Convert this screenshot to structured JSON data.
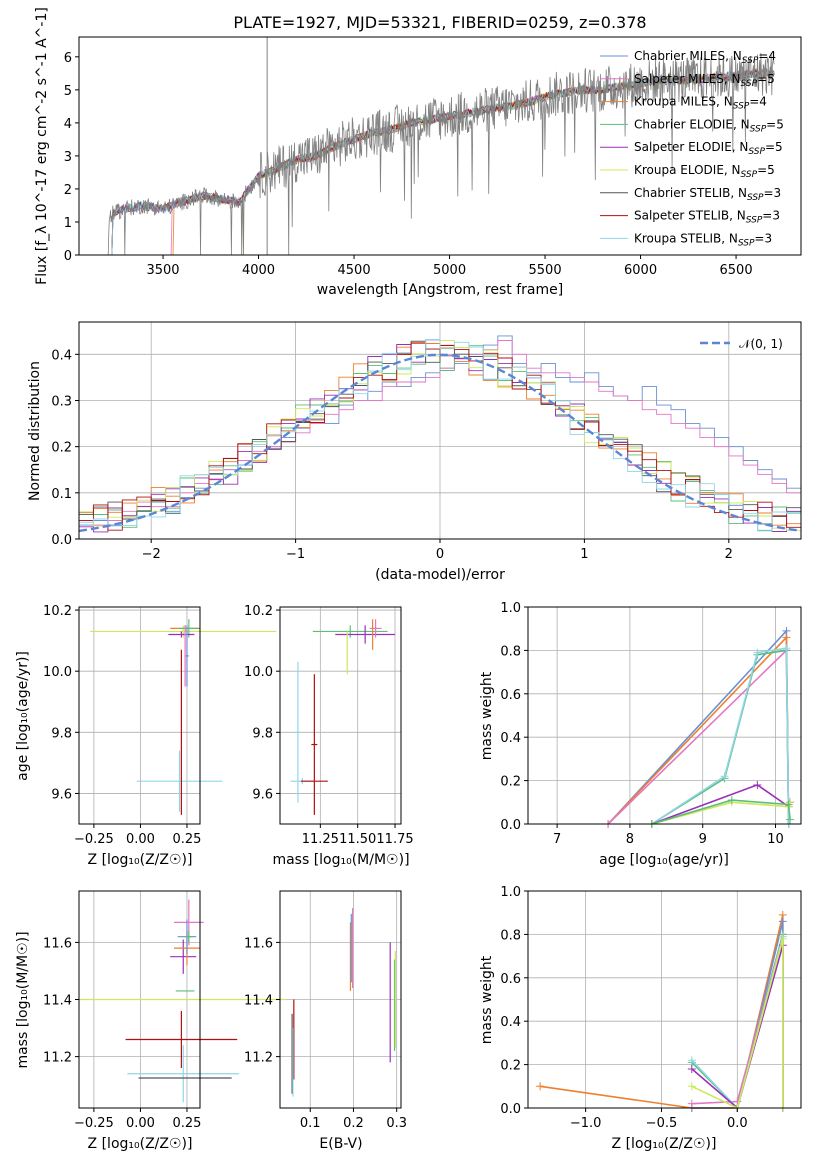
{
  "title": "PLATE=1927, MJD=53321, FIBERID=0259, z=0.378",
  "colors": {
    "chabrier_miles": "#6a8fd4",
    "salpeter_miles": "#e377c2",
    "kroupa_miles": "#ef7f2c",
    "chabrier_elodie": "#5bbf7a",
    "salpeter_elodie": "#9b30b8",
    "kroupa_elodie": "#cde85a",
    "chabrier_stelib": "#555555",
    "salpeter_stelib": "#b21010",
    "kroupa_stelib": "#8fd6e8",
    "normal": "#5b86d6"
  },
  "spectrum": {
    "xlabel": "wavelength [Angstrom, rest frame]",
    "ylabel": "Flux [f_λ 10^-17 erg cm^-2 s^-1 A^-1]",
    "xticks": [
      "3500",
      "4000",
      "4500",
      "5000",
      "5500",
      "6000",
      "6500"
    ],
    "yticks": [
      "0",
      "1",
      "2",
      "3",
      "4",
      "5",
      "6"
    ],
    "legend": [
      {
        "model": "Chabrier MILES",
        "n": "=4",
        "color": "#6a8fd4"
      },
      {
        "model": "Salpeter MILES",
        "n": "=5",
        "color": "#e377c2"
      },
      {
        "model": "Kroupa MILES",
        "n": "=4",
        "color": "#ef7f2c"
      },
      {
        "model": "Chabrier ELODIE",
        "n": "=5",
        "color": "#5bbf7a"
      },
      {
        "model": "Salpeter ELODIE",
        "n": "=5",
        "color": "#9b30b8"
      },
      {
        "model": "Kroupa ELODIE",
        "n": "=5",
        "color": "#cde85a"
      },
      {
        "model": "Chabrier STELIB",
        "n": "=3",
        "color": "#555555"
      },
      {
        "model": "Salpeter STELIB",
        "n": "=3",
        "color": "#b21010"
      },
      {
        "model": "Kroupa STELIB",
        "n": "=3",
        "color": "#8fd6e8"
      }
    ],
    "legend_n_label": "N",
    "legend_n_sub": "SSP"
  },
  "residuals": {
    "xlabel": "(data-model)/error",
    "ylabel": "Normed distribution",
    "legend": "𝒩(0, 1)",
    "xticks": [
      "−2",
      "−1",
      "0",
      "1",
      "2"
    ],
    "yticks": [
      "0.0",
      "0.1",
      "0.2",
      "0.3",
      "0.4"
    ]
  },
  "panels": {
    "age_z": {
      "xlabel": "Z [log₁₀(Z/Z☉)]",
      "ylabel": "age  [log₁₀(age/yr)]",
      "xticks": [
        "−0.25",
        "0.00",
        "0.25"
      ],
      "yticks": [
        "9.6",
        "9.8",
        "10.0",
        "10.2"
      ]
    },
    "age_mass": {
      "xlabel": "mass [log₁₀(M/M☉)]",
      "xticks": [
        "11.25",
        "11.50",
        "11.75"
      ],
      "yticks": [
        "9.6",
        "9.8",
        "10.0",
        "10.2"
      ]
    },
    "mw_age": {
      "xlabel": "age  [log₁₀(age/yr)]",
      "ylabel": "mass weight",
      "xticks": [
        "7",
        "8",
        "9",
        "10"
      ],
      "yticks": [
        "0.0",
        "0.2",
        "0.4",
        "0.6",
        "0.8",
        "1.0"
      ]
    },
    "mass_z": {
      "xlabel": "Z [log₁₀(Z/Z☉)]",
      "ylabel": "mass [log₁₀(M/M☉)]",
      "xticks": [
        "−0.25",
        "0.00",
        "0.25"
      ],
      "yticks": [
        "11.2",
        "11.4",
        "11.6"
      ]
    },
    "mass_ebv": {
      "xlabel": "E(B-V)",
      "xticks": [
        "0.1",
        "0.2",
        "0.3"
      ],
      "yticks": [
        "11.2",
        "11.4",
        "11.6"
      ]
    },
    "mw_z": {
      "xlabel": "Z [log₁₀(Z/Z☉)]",
      "ylabel": "mass weight",
      "xticks": [
        "−1.0",
        "−0.5",
        "0.0"
      ],
      "yticks": [
        "0.0",
        "0.2",
        "0.4",
        "0.6",
        "0.8",
        "1.0"
      ]
    }
  },
  "chart_data": [
    {
      "type": "line",
      "title": "PLATE=1927, MJD=53321, FIBERID=0259, z=0.378",
      "xlabel": "wavelength [Angstrom, rest frame]",
      "ylabel": "Flux [f_λ 10^-17 erg cm^-2 s^-1 A^-1]",
      "xlim": [
        3060,
        6840
      ],
      "ylim": [
        0,
        6.6
      ],
      "data_points": [
        [
          3210,
          0.0
        ],
        [
          3220,
          1.2
        ],
        [
          3300,
          1.4
        ],
        [
          3400,
          1.5
        ],
        [
          3500,
          1.4
        ],
        [
          3600,
          1.6
        ],
        [
          3700,
          1.8
        ],
        [
          3800,
          1.7
        ],
        [
          3900,
          1.6
        ],
        [
          4000,
          2.4
        ],
        [
          4100,
          2.6
        ],
        [
          4200,
          2.9
        ],
        [
          4300,
          3.0
        ],
        [
          4400,
          3.3
        ],
        [
          4500,
          3.5
        ],
        [
          4600,
          3.7
        ],
        [
          4700,
          3.8
        ],
        [
          4800,
          4.0
        ],
        [
          4900,
          4.1
        ],
        [
          5000,
          4.2
        ],
        [
          5100,
          4.3
        ],
        [
          5200,
          4.4
        ],
        [
          5300,
          4.5
        ],
        [
          5400,
          4.6
        ],
        [
          5500,
          4.8
        ],
        [
          5600,
          4.9
        ],
        [
          5700,
          5.0
        ],
        [
          5800,
          5.0
        ],
        [
          5900,
          5.1
        ],
        [
          6000,
          5.2
        ],
        [
          6100,
          5.3
        ],
        [
          6200,
          5.3
        ],
        [
          6300,
          5.3
        ],
        [
          6400,
          5.4
        ],
        [
          6500,
          5.4
        ],
        [
          6600,
          5.5
        ],
        [
          6700,
          5.5
        ]
      ],
      "legend_position": "upper right"
    },
    {
      "type": "line",
      "xlabel": "(data-model)/error",
      "ylabel": "Normed distribution",
      "xlim": [
        -2.5,
        2.5
      ],
      "ylim": [
        0,
        0.47
      ],
      "bin_width": 0.1,
      "gaussian_label": "𝒩(0, 1)",
      "series": [
        {
          "name": "Chabrier MILES",
          "values": [
            0.03,
            0.04,
            0.03,
            0.05,
            0.07,
            0.08,
            0.06,
            0.09,
            0.11,
            0.14,
            0.15,
            0.16,
            0.17,
            0.2,
            0.22,
            0.24,
            0.26,
            0.25,
            0.29,
            0.3,
            0.32,
            0.34,
            0.33,
            0.35,
            0.36,
            0.37,
            0.38,
            0.4,
            0.42,
            0.44,
            0.38,
            0.36,
            0.38,
            0.35,
            0.34,
            0.36,
            0.33,
            0.31,
            0.3,
            0.33,
            0.29,
            0.28,
            0.25,
            0.24,
            0.22,
            0.2,
            0.17,
            0.15,
            0.13,
            0.11
          ]
        },
        {
          "name": "Salpeter MILES",
          "values": [
            0.04,
            0.03,
            0.04,
            0.06,
            0.08,
            0.07,
            0.07,
            0.1,
            0.12,
            0.13,
            0.15,
            0.17,
            0.19,
            0.2,
            0.21,
            0.23,
            0.25,
            0.27,
            0.28,
            0.3,
            0.3,
            0.33,
            0.34,
            0.34,
            0.35,
            0.37,
            0.39,
            0.4,
            0.41,
            0.43,
            0.4,
            0.37,
            0.36,
            0.36,
            0.35,
            0.34,
            0.32,
            0.31,
            0.3,
            0.28,
            0.27,
            0.25,
            0.24,
            0.22,
            0.2,
            0.18,
            0.16,
            0.14,
            0.12,
            0.1
          ]
        }
      ]
    },
    {
      "type": "scatter",
      "xlabel": "Z [log₁₀(Z/Z☉)]",
      "ylabel": "age  [log₁₀(age/yr)]",
      "xlim": [
        -0.33,
        0.32
      ],
      "ylim": [
        9.5,
        10.21
      ],
      "points": [
        {
          "x": 0.23,
          "y": 10.13,
          "xerr": 0.5,
          "yerr": 0.02
        },
        {
          "x": 0.24,
          "y": 10.14,
          "xerr": 0.08,
          "yerr": 0.01
        },
        {
          "x": 0.26,
          "y": 10.14,
          "xerr": 0.05,
          "yerr": 0.03
        },
        {
          "x": 0.22,
          "y": 10.12,
          "xerr": 0.07,
          "yerr": 0.01
        },
        {
          "x": 0.25,
          "y": 10.05,
          "xerr": 0.01,
          "yerr": 0.1
        },
        {
          "x": 0.21,
          "y": 9.64,
          "xerr": 0.23,
          "yerr": 0.1
        }
      ]
    },
    {
      "type": "scatter",
      "xlabel": "mass [log₁₀(M/M☉)]",
      "ylabel": "age  [log₁₀(age/yr)]",
      "xlim": [
        10.98,
        11.79
      ],
      "ylim": [
        9.5,
        10.21
      ],
      "points": [
        {
          "x": 11.45,
          "y": 10.13,
          "xerr": 0.25,
          "yerr": 0.02
        },
        {
          "x": 11.55,
          "y": 10.12,
          "xerr": 0.2,
          "yerr": 0.03
        },
        {
          "x": 11.62,
          "y": 10.14,
          "xerr": 0.04,
          "yerr": 0.03
        },
        {
          "x": 11.1,
          "y": 9.8,
          "xerr": 0.02,
          "yerr": 0.23
        },
        {
          "x": 11.21,
          "y": 9.76,
          "xerr": 0.02,
          "yerr": 0.23
        },
        {
          "x": 11.13,
          "y": 9.64,
          "xerr": 0.08,
          "yerr": 0.01
        }
      ]
    },
    {
      "type": "line",
      "xlabel": "age  [log₁₀(age/yr)]",
      "ylabel": "mass weight",
      "xlim": [
        6.6,
        10.35
      ],
      "ylim": [
        0,
        1.0
      ],
      "series": [
        {
          "name": "MILES",
          "x": [
            7.7,
            10.15,
            10.18
          ],
          "y": [
            0.0,
            0.89,
            0.0
          ]
        },
        {
          "name": "ELODIE",
          "x": [
            8.3,
            9.3,
            9.75,
            10.15,
            10.18
          ],
          "y": [
            0.0,
            0.21,
            0.78,
            0.8,
            0.0
          ]
        },
        {
          "name": "STELIB",
          "x": [
            8.3,
            9.4,
            10.18,
            10.2
          ],
          "y": [
            0.0,
            0.1,
            0.08,
            0.1
          ]
        }
      ]
    },
    {
      "type": "scatter",
      "xlabel": "Z [log₁₀(Z/Z☉)]",
      "ylabel": "mass [log₁₀(M/M☉)]",
      "xlim": [
        -0.33,
        0.32
      ],
      "ylim": [
        11.02,
        11.78
      ],
      "points": [
        {
          "x": 0.23,
          "y": 11.4,
          "xerr": 0.55,
          "yerr": 0.0
        },
        {
          "x": 0.24,
          "y": 11.62,
          "xerr": 0.05,
          "yerr": 0.1
        },
        {
          "x": 0.22,
          "y": 11.26,
          "xerr": 0.3,
          "yerr": 0.1
        },
        {
          "x": 0.23,
          "y": 11.14,
          "xerr": 0.3,
          "yerr": 0.1
        }
      ]
    },
    {
      "type": "scatter",
      "xlabel": "E(B-V)",
      "ylabel": "mass [log₁₀(M/M☉)]",
      "xlim": [
        0.03,
        0.31
      ],
      "ylim": [
        11.02,
        11.78
      ],
      "points": [
        {
          "x": 0.06,
          "y": 11.22,
          "yerr": 0.14
        },
        {
          "x": 0.195,
          "y": 11.55,
          "yerr": 0.13
        },
        {
          "x": 0.285,
          "y": 11.4,
          "yerr": 0.2
        },
        {
          "x": 0.295,
          "y": 11.38,
          "yerr": 0.17
        }
      ]
    },
    {
      "type": "line",
      "xlabel": "Z [log₁₀(Z/Z☉)]",
      "ylabel": "mass weight",
      "xlim": [
        -1.38,
        0.42
      ],
      "ylim": [
        0,
        1.0
      ],
      "series": [
        {
          "name": "MILES",
          "x": [
            -1.3,
            -0.3,
            0.0,
            0.3
          ],
          "y": [
            0.1,
            0.0,
            0.0,
            0.89
          ]
        },
        {
          "name": "ELODIE",
          "x": [
            -0.3,
            0.0,
            0.3
          ],
          "y": [
            0.21,
            0.0,
            0.8
          ]
        },
        {
          "name": "STELIB",
          "x": [
            -0.3,
            0.0,
            0.3
          ],
          "y": [
            0.1,
            0.0,
            0.0
          ]
        }
      ]
    }
  ]
}
